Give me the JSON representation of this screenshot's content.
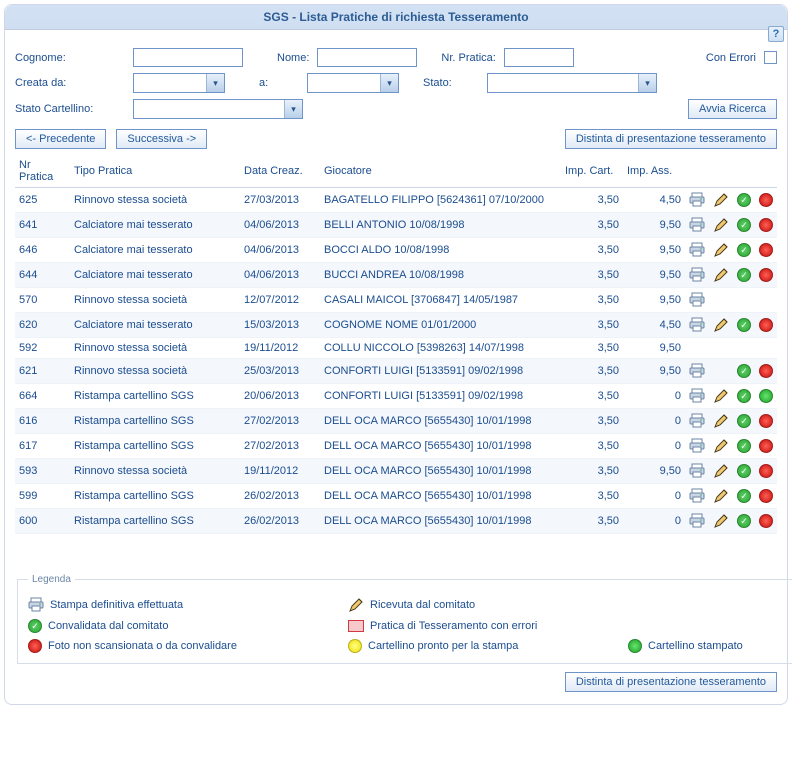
{
  "title": "SGS - Lista Pratiche di richiesta Tesseramento",
  "labels": {
    "cognome": "Cognome:",
    "nome": "Nome:",
    "nr_pratica": "Nr. Pratica:",
    "con_errori": "Con Errori",
    "creata_da": "Creata da:",
    "a": "a:",
    "stato": "Stato:",
    "stato_cartellino": "Stato Cartellino:",
    "avvia": "Avvia Ricerca",
    "prev": "<- Precedente",
    "next": "Successiva ->",
    "distinta": "Distinta di presentazione tesseramento"
  },
  "columns": {
    "nr": "Nr Pratica",
    "tipo": "Tipo Pratica",
    "data": "Data Creaz.",
    "gioc": "Giocatore",
    "cart": "Imp. Cart.",
    "ass": "Imp. Ass."
  },
  "rows": [
    {
      "nr": "625",
      "tipo": "Rinnovo stessa società",
      "data": "27/03/2013",
      "gioc": "BAGATELLO FILIPPO [5624361] 07/10/2000",
      "cart": "3,50",
      "ass": "4,50",
      "print": true,
      "pencil": true,
      "ok": true,
      "dot": "red"
    },
    {
      "nr": "641",
      "tipo": "Calciatore mai tesserato",
      "data": "04/06/2013",
      "gioc": "BELLI ANTONIO 10/08/1998",
      "cart": "3,50",
      "ass": "9,50",
      "print": true,
      "pencil": true,
      "ok": true,
      "dot": "red"
    },
    {
      "nr": "646",
      "tipo": "Calciatore mai tesserato",
      "data": "04/06/2013",
      "gioc": "BOCCI ALDO 10/08/1998",
      "cart": "3,50",
      "ass": "9,50",
      "print": true,
      "pencil": true,
      "ok": true,
      "dot": "red"
    },
    {
      "nr": "644",
      "tipo": "Calciatore mai tesserato",
      "data": "04/06/2013",
      "gioc": "BUCCI ANDREA 10/08/1998",
      "cart": "3,50",
      "ass": "9,50",
      "print": true,
      "pencil": true,
      "ok": true,
      "dot": "red"
    },
    {
      "nr": "570",
      "tipo": "Rinnovo stessa società",
      "data": "12/07/2012",
      "gioc": "CASALI MAICOL [3706847] 14/05/1987",
      "cart": "3,50",
      "ass": "9,50",
      "print": true,
      "pencil": false,
      "ok": false,
      "dot": null
    },
    {
      "nr": "620",
      "tipo": "Calciatore mai tesserato",
      "data": "15/03/2013",
      "gioc": "COGNOME NOME 01/01/2000",
      "cart": "3,50",
      "ass": "4,50",
      "print": true,
      "pencil": true,
      "ok": true,
      "dot": "red"
    },
    {
      "nr": "592",
      "tipo": "Rinnovo stessa società",
      "data": "19/11/2012",
      "gioc": "COLLU NICCOLO [5398263] 14/07/1998",
      "cart": "3,50",
      "ass": "9,50",
      "print": false,
      "pencil": false,
      "ok": false,
      "dot": null
    },
    {
      "nr": "621",
      "tipo": "Rinnovo stessa società",
      "data": "25/03/2013",
      "gioc": "CONFORTI LUIGI [5133591] 09/02/1998",
      "cart": "3,50",
      "ass": "9,50",
      "print": true,
      "pencil": false,
      "ok": true,
      "dot": "red"
    },
    {
      "nr": "664",
      "tipo": "Ristampa cartellino SGS",
      "data": "20/06/2013",
      "gioc": "CONFORTI LUIGI [5133591] 09/02/1998",
      "cart": "3,50",
      "ass": "0",
      "print": true,
      "pencil": true,
      "ok": true,
      "dot": "green"
    },
    {
      "nr": "616",
      "tipo": "Ristampa cartellino SGS",
      "data": "27/02/2013",
      "gioc": "DELL OCA MARCO [5655430] 10/01/1998",
      "cart": "3,50",
      "ass": "0",
      "print": true,
      "pencil": true,
      "ok": true,
      "dot": "red"
    },
    {
      "nr": "617",
      "tipo": "Ristampa cartellino SGS",
      "data": "27/02/2013",
      "gioc": "DELL OCA MARCO [5655430] 10/01/1998",
      "cart": "3,50",
      "ass": "0",
      "print": true,
      "pencil": true,
      "ok": true,
      "dot": "red"
    },
    {
      "nr": "593",
      "tipo": "Rinnovo stessa società",
      "data": "19/11/2012",
      "gioc": "DELL OCA MARCO [5655430] 10/01/1998",
      "cart": "3,50",
      "ass": "9,50",
      "print": true,
      "pencil": true,
      "ok": true,
      "dot": "red"
    },
    {
      "nr": "599",
      "tipo": "Ristampa cartellino SGS",
      "data": "26/02/2013",
      "gioc": "DELL OCA MARCO [5655430] 10/01/1998",
      "cart": "3,50",
      "ass": "0",
      "print": true,
      "pencil": true,
      "ok": true,
      "dot": "red"
    },
    {
      "nr": "600",
      "tipo": "Ristampa cartellino SGS",
      "data": "26/02/2013",
      "gioc": "DELL OCA MARCO [5655430] 10/01/1998",
      "cart": "3,50",
      "ass": "0",
      "print": true,
      "pencil": true,
      "ok": true,
      "dot": "red"
    }
  ],
  "legend": {
    "title": "Legenda",
    "items": {
      "stampa": "Stampa definitiva effettuata",
      "ricevuta": "Ricevuta dal comitato",
      "convalidata": "Convalidata dal comitato",
      "errori": "Pratica di Tesseramento con errori",
      "foto": "Foto non scansionata o da convalidare",
      "pronto": "Cartellino pronto per la stampa",
      "stampato": "Cartellino stampato"
    }
  }
}
